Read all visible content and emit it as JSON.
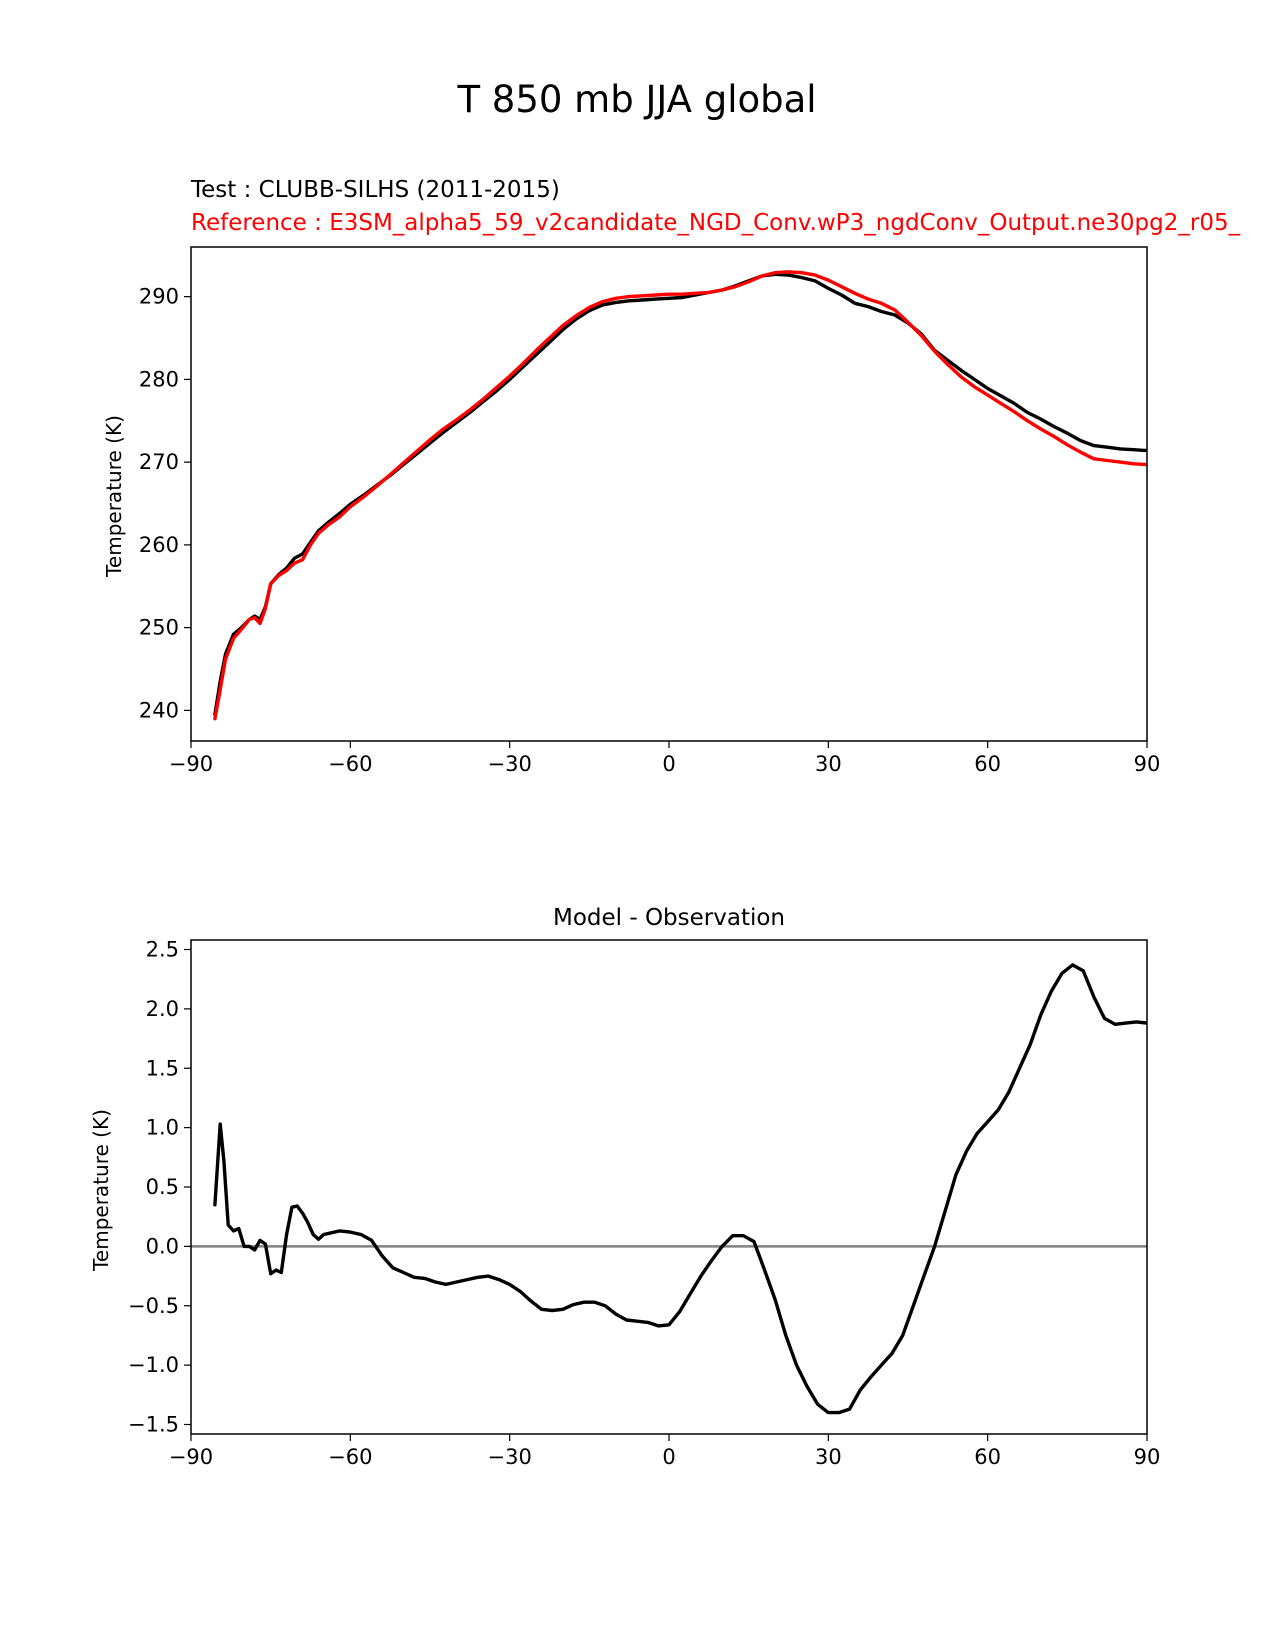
{
  "figure": {
    "suptitle": "T 850 mb JJA global"
  },
  "chart_data": [
    {
      "type": "line",
      "panel": "top",
      "test_label": "Test : CLUBB-SILHS (2011-2015)",
      "reference_label": "Reference : E3SM_alpha5_59_v2candidate_NGD_Conv.wP3_ngdConv_Output.ne30pg2_r05_",
      "xlim": [
        -90,
        90
      ],
      "ylim": [
        236.3,
        296
      ],
      "xticks": [
        -90,
        -60,
        -30,
        0,
        30,
        60,
        90
      ],
      "xtick_labels": [
        "−90",
        "−60",
        "−30",
        "0",
        "30",
        "60",
        "90"
      ],
      "yticks": [
        240,
        250,
        260,
        270,
        280,
        290
      ],
      "ytick_labels": [
        "240",
        "250",
        "260",
        "270",
        "280",
        "290"
      ],
      "ylabel": "Temperature (K)",
      "colors": {
        "test": "#000000",
        "reference": "#ff0000"
      },
      "series": [
        {
          "role": "test",
          "x": [
            -85.5,
            -84.5,
            -83.5,
            -82,
            -80.5,
            -79,
            -78,
            -77,
            -76,
            -75,
            -73.5,
            -72,
            -70.5,
            -69,
            -67.5,
            -66,
            -64,
            -62,
            -60,
            -57.5,
            -55,
            -52.5,
            -50,
            -47.5,
            -45,
            -42.5,
            -40,
            -37.5,
            -35,
            -32.5,
            -30,
            -27.5,
            -25,
            -22.5,
            -20,
            -17.5,
            -15,
            -12.5,
            -10,
            -7.5,
            -5,
            -2.5,
            0,
            2.5,
            5,
            7.5,
            10,
            12.5,
            15,
            17.5,
            20,
            22.5,
            25,
            27.5,
            30,
            32.5,
            35,
            37.5,
            40,
            42.5,
            45,
            47.5,
            50,
            52.5,
            55,
            57.5,
            60,
            62.5,
            65,
            67.5,
            70,
            72.5,
            75,
            77.5,
            80,
            82.5,
            85,
            87.5,
            90
          ],
          "values": [
            239.5,
            243.5,
            246.8,
            249.2,
            250,
            251,
            251.4,
            251,
            252.5,
            255.3,
            256.4,
            257.2,
            258.4,
            258.9,
            260.3,
            261.7,
            262.8,
            263.8,
            264.9,
            266,
            267.2,
            268.4,
            269.7,
            271,
            272.3,
            273.6,
            274.8,
            276,
            277.3,
            278.6,
            280,
            281.5,
            283,
            284.5,
            286,
            287.3,
            288.3,
            289,
            289.3,
            289.5,
            289.6,
            289.7,
            289.8,
            289.9,
            290.2,
            290.5,
            290.8,
            291.3,
            291.9,
            292.5,
            292.7,
            292.6,
            292.3,
            291.9,
            291,
            290.2,
            289.2,
            288.8,
            288.2,
            287.8,
            286.8,
            285.5,
            283.5,
            282.3,
            281.1,
            280,
            278.9,
            278,
            277.1,
            276,
            275.2,
            274.3,
            273.5,
            272.6,
            272,
            271.8,
            271.6,
            271.5,
            271.4
          ]
        },
        {
          "role": "reference",
          "x": [
            -85.5,
            -84.5,
            -83.5,
            -82,
            -80.5,
            -79,
            -78,
            -77,
            -76,
            -75,
            -73.5,
            -72,
            -70.5,
            -69,
            -67.5,
            -66,
            -64,
            -62,
            -60,
            -57.5,
            -55,
            -52.5,
            -50,
            -47.5,
            -45,
            -42.5,
            -40,
            -37.5,
            -35,
            -32.5,
            -30,
            -27.5,
            -25,
            -22.5,
            -20,
            -17.5,
            -15,
            -12.5,
            -10,
            -7.5,
            -5,
            -2.5,
            0,
            2.5,
            5,
            7.5,
            10,
            12.5,
            15,
            17.5,
            20,
            22.5,
            25,
            27.5,
            30,
            32.5,
            35,
            37.5,
            40,
            42.5,
            45,
            47.5,
            50,
            52.5,
            55,
            57.5,
            60,
            62.5,
            65,
            67.5,
            70,
            72.5,
            75,
            77.5,
            80,
            82.5,
            85,
            87.5,
            90
          ],
          "values": [
            239,
            242.5,
            246.2,
            248.7,
            249.8,
            251,
            251.2,
            250.5,
            252.3,
            255.3,
            256.3,
            256.9,
            257.8,
            258.2,
            260,
            261.4,
            262.5,
            263.4,
            264.6,
            265.8,
            267.1,
            268.5,
            269.9,
            271.3,
            272.7,
            274,
            275.1,
            276.3,
            277.6,
            279,
            280.4,
            281.9,
            283.5,
            285,
            286.5,
            287.7,
            288.7,
            289.4,
            289.8,
            290,
            290.1,
            290.2,
            290.3,
            290.3,
            290.4,
            290.5,
            290.8,
            291.2,
            291.8,
            292.5,
            292.9,
            293,
            292.9,
            292.6,
            292,
            291.2,
            290.4,
            289.7,
            289.2,
            288.4,
            286.9,
            285.3,
            283.4,
            281.8,
            280.3,
            279.1,
            278.1,
            277.1,
            276.1,
            275,
            274,
            273.1,
            272.1,
            271.2,
            270.4,
            270.2,
            270,
            269.8,
            269.7
          ]
        }
      ]
    },
    {
      "type": "line",
      "panel": "bottom",
      "title": "Model - Observation",
      "xlim": [
        -90,
        90
      ],
      "ylim": [
        -1.58,
        2.58
      ],
      "xticks": [
        -90,
        -60,
        -30,
        0,
        30,
        60,
        90
      ],
      "xtick_labels": [
        "−90",
        "−60",
        "−30",
        "0",
        "30",
        "60",
        "90"
      ],
      "yticks": [
        -1.5,
        -1.0,
        -0.5,
        0.0,
        0.5,
        1.0,
        1.5,
        2.0,
        2.5
      ],
      "ytick_labels": [
        "−1.5",
        "−1.0",
        "−0.5",
        "0.0",
        "0.5",
        "1.0",
        "1.5",
        "2.0",
        "2.5"
      ],
      "ylabel": "Temperature (K)",
      "zero_line": 0,
      "colors": {
        "diff": "#000000",
        "zero_line": "#808080"
      },
      "series": [
        {
          "role": "diff",
          "x": [
            -85.5,
            -84.5,
            -83.8,
            -83,
            -82,
            -81,
            -80,
            -79,
            -78,
            -77,
            -76,
            -75,
            -74,
            -73,
            -72,
            -71,
            -70,
            -69,
            -68,
            -67,
            -66,
            -65,
            -64,
            -62,
            -60,
            -58,
            -56,
            -54,
            -52,
            -50,
            -48,
            -46,
            -44,
            -42,
            -40,
            -38,
            -36,
            -34,
            -32,
            -30,
            -28,
            -26,
            -24,
            -22,
            -20,
            -18,
            -16,
            -14,
            -12,
            -10,
            -8,
            -6,
            -4,
            -2,
            0,
            2,
            4,
            6,
            8,
            10,
            12,
            14,
            16,
            18,
            20,
            22,
            24,
            26,
            28,
            30,
            32,
            34,
            36,
            38,
            40,
            42,
            44,
            46,
            48,
            50,
            52,
            54,
            56,
            58,
            60,
            62,
            64,
            66,
            68,
            70,
            72,
            74,
            76,
            78,
            80,
            82,
            84,
            86,
            88,
            90
          ],
          "values": [
            0.35,
            1.03,
            0.72,
            0.18,
            0.13,
            0.15,
            0.0,
            0.0,
            -0.03,
            0.05,
            0.02,
            -0.23,
            -0.2,
            -0.22,
            0.1,
            0.33,
            0.34,
            0.28,
            0.2,
            0.1,
            0.06,
            0.1,
            0.11,
            0.13,
            0.12,
            0.1,
            0.05,
            -0.08,
            -0.18,
            -0.22,
            -0.26,
            -0.27,
            -0.3,
            -0.32,
            -0.3,
            -0.28,
            -0.26,
            -0.25,
            -0.28,
            -0.32,
            -0.38,
            -0.46,
            -0.53,
            -0.54,
            -0.53,
            -0.49,
            -0.47,
            -0.47,
            -0.5,
            -0.57,
            -0.62,
            -0.63,
            -0.64,
            -0.67,
            -0.66,
            -0.55,
            -0.4,
            -0.25,
            -0.12,
            0.0,
            0.09,
            0.09,
            0.04,
            -0.2,
            -0.45,
            -0.75,
            -1.0,
            -1.18,
            -1.33,
            -1.4,
            -1.4,
            -1.37,
            -1.21,
            -1.1,
            -1.0,
            -0.9,
            -0.75,
            -0.5,
            -0.25,
            0.0,
            0.3,
            0.6,
            0.8,
            0.95,
            1.05,
            1.15,
            1.3,
            1.5,
            1.7,
            1.95,
            2.15,
            2.3,
            2.37,
            2.32,
            2.1,
            1.92,
            1.87,
            1.88,
            1.89,
            1.88
          ]
        }
      ]
    }
  ]
}
